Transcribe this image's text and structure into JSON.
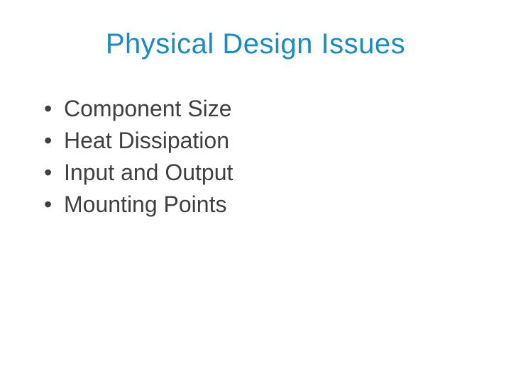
{
  "slide": {
    "title": "Physical Design Issues",
    "title_color": "#1a8bc4",
    "title_fontsize": 40,
    "bullet_color": "#404040",
    "bullet_fontsize": 32,
    "background_color": "#ffffff",
    "bullets": [
      "Component Size",
      "Heat Dissipation",
      "Input and Output",
      "Mounting Points"
    ]
  }
}
